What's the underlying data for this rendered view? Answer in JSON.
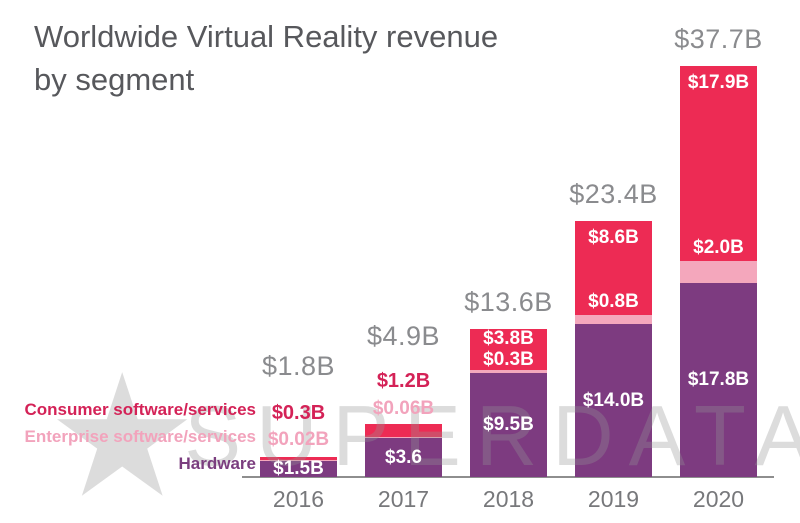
{
  "title": {
    "line1": "Worldwide Virtual Reality revenue",
    "line2": "by segment",
    "full": "Worldwide Virtual Reality revenue by segment"
  },
  "watermark": {
    "star_icon": "★",
    "text": "SUPERDATA"
  },
  "colors": {
    "consumer_red": "#ED2B54",
    "enterprise_pink": "#F4A7BC",
    "hardware_purple": "#7D3B80",
    "red_label_text": "#D42257",
    "pink_label_text": "#F2A3BC",
    "purple_label_text": "#7B3E7F",
    "total_gray": "#8A8B8E",
    "title_gray": "#57585C",
    "axis_gray": "#8E8E8E",
    "year_gray": "#77787B"
  },
  "legend": {
    "items": [
      {
        "label": "Consumer software/services",
        "color": "#D42257"
      },
      {
        "label": "Enterprise software/services",
        "color": "#F2A3BC"
      },
      {
        "label": "Hardware",
        "color": "#7B3E7F"
      }
    ]
  },
  "chart_data": {
    "type": "bar",
    "stacked": true,
    "title": "Worldwide Virtual Reality revenue by segment",
    "unit": "USD billions",
    "categories": [
      "2016",
      "2017",
      "2018",
      "2019",
      "2020"
    ],
    "series": [
      {
        "name": "Hardware",
        "color": "#7D3B80",
        "values": [
          1.5,
          3.6,
          9.5,
          14.0,
          17.8
        ],
        "labels": [
          "$1.5B",
          "$3.6",
          "$9.5B",
          "$14.0B",
          "$17.8B"
        ]
      },
      {
        "name": "Enterprise software/services",
        "color": "#F4A7BC",
        "values": [
          0.02,
          0.06,
          0.3,
          0.8,
          2.0
        ],
        "labels": [
          "$0.02B",
          "$0.06B",
          "$0.3B",
          "$0.8B",
          "$2.0B"
        ]
      },
      {
        "name": "Consumer software/services",
        "color": "#ED2B54",
        "values": [
          0.3,
          1.2,
          3.8,
          8.6,
          17.9
        ],
        "labels": [
          "$0.3B",
          "$1.2B",
          "$3.8B",
          "$8.6B",
          "$17.9B"
        ]
      }
    ],
    "totals": [
      1.8,
      4.9,
      13.6,
      23.4,
      37.7
    ],
    "total_labels": [
      "$1.8B",
      "$4.9B",
      "$13.6B",
      "$23.4B",
      "$37.7B"
    ],
    "legend_position": "left",
    "grid": false,
    "value_axis_visible": false
  }
}
